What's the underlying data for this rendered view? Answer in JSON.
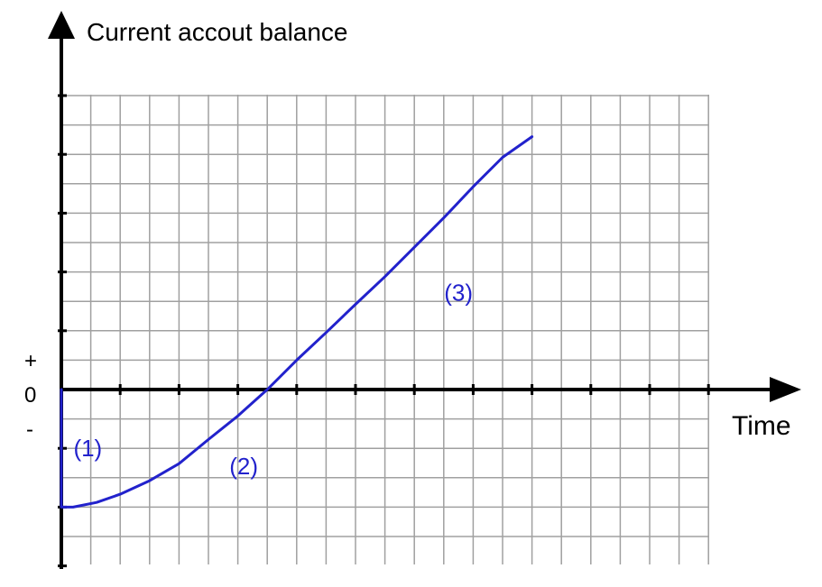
{
  "chart_data": {
    "type": "line",
    "title": "",
    "ylabel": "Current accout balance",
    "xlabel": "Time",
    "y_sign_labels": {
      "plus": "+",
      "zero": "0",
      "minus": "-"
    },
    "grid": true,
    "xlim": [
      0,
      11
    ],
    "ylim": [
      -3,
      5
    ],
    "series": [
      {
        "name": "balance",
        "color": "#2222cc",
        "x": [
          0,
          0,
          0.2,
          0.6,
          1.0,
          1.5,
          2.0,
          2.5,
          3.0,
          3.5,
          4.0,
          4.5,
          5.0,
          5.5,
          6.0,
          6.5,
          7.0,
          7.5,
          8.0
        ],
        "y": [
          0,
          -2.0,
          -2.0,
          -1.92,
          -1.78,
          -1.55,
          -1.26,
          -0.85,
          -0.45,
          0.0,
          0.5,
          0.97,
          1.45,
          1.92,
          2.42,
          2.92,
          3.45,
          3.95,
          4.3
        ]
      }
    ],
    "annotations": [
      {
        "label": "(1)",
        "x": 0.45,
        "y": -1.0
      },
      {
        "label": "(2)",
        "x": 3.1,
        "y": -1.3
      },
      {
        "label": "(3)",
        "x": 6.75,
        "y": 1.65
      }
    ]
  }
}
